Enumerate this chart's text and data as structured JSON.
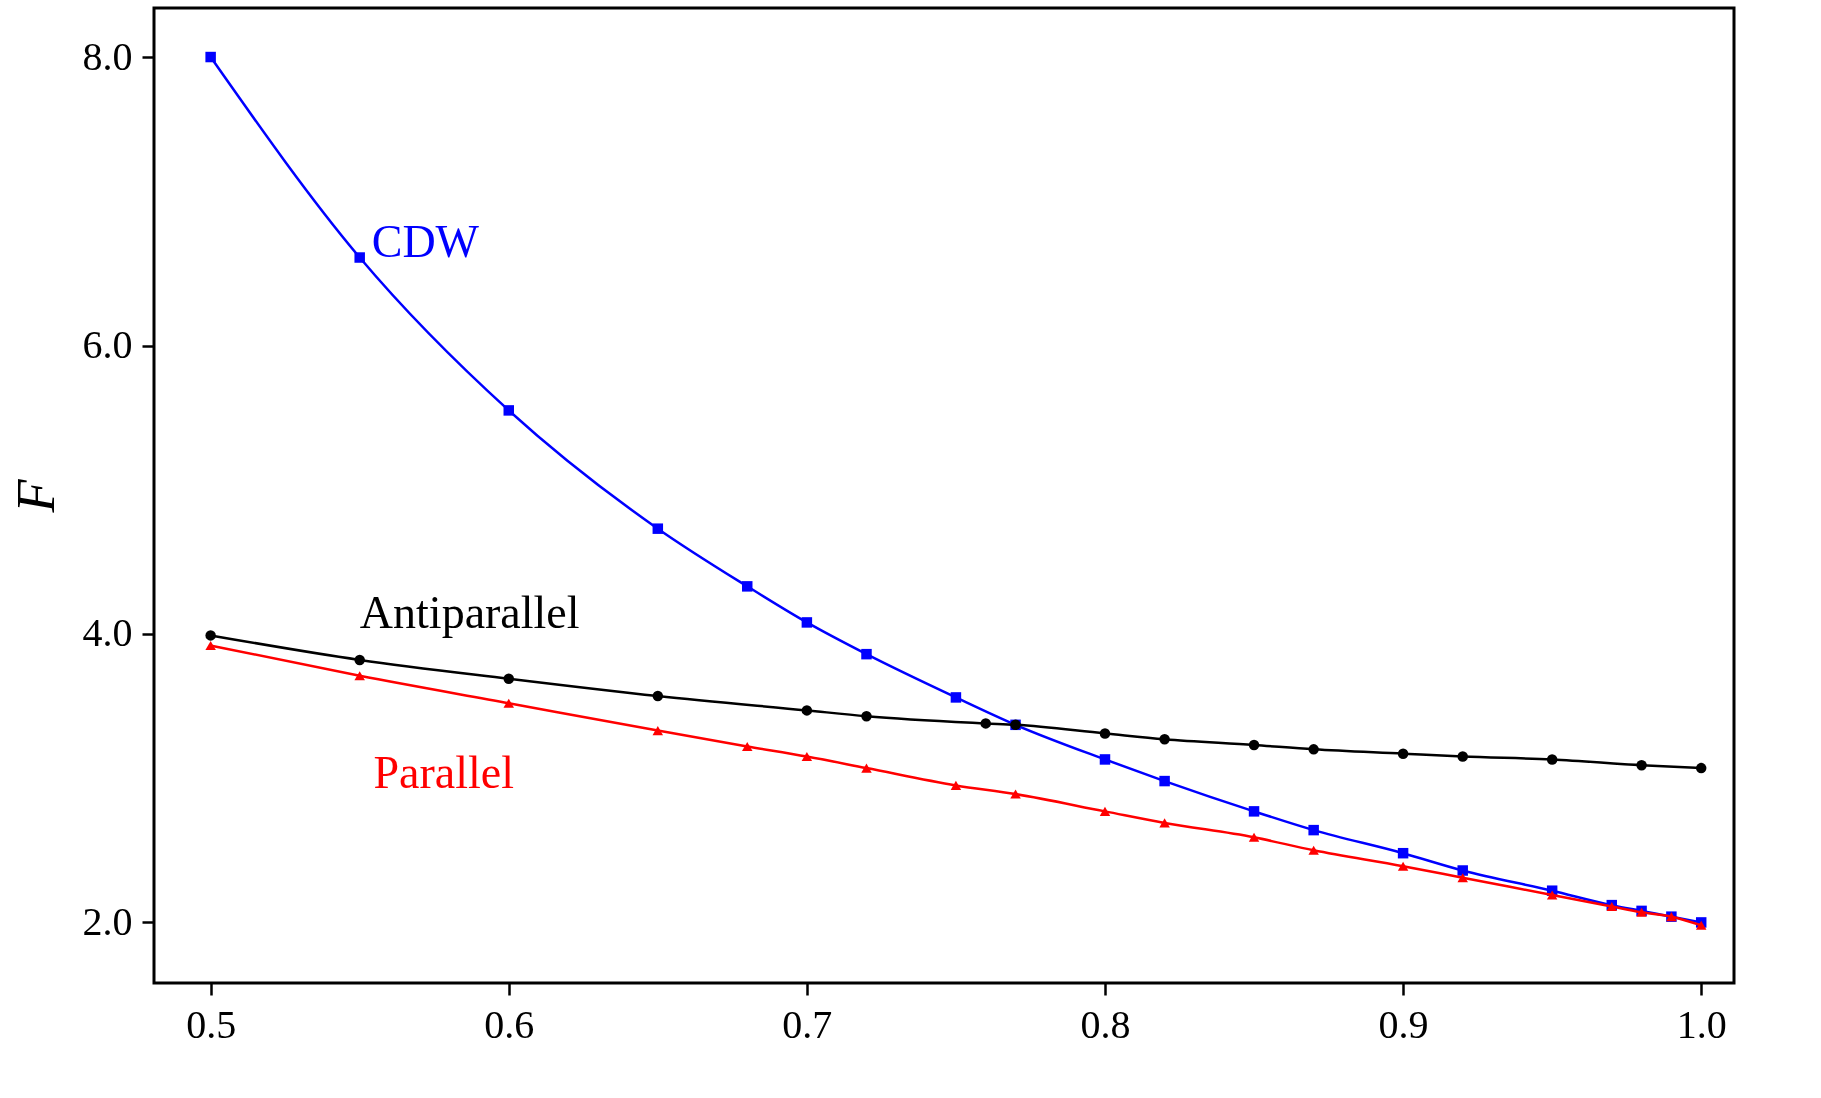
{
  "chart_data": {
    "type": "line",
    "ylabel": "F",
    "xlim": [
      0.481,
      1.011
    ],
    "ylim": [
      1.58,
      8.34
    ],
    "xticks": [
      0.5,
      0.6,
      0.7,
      0.8,
      0.9,
      {
        "value": 1.0,
        "label": "1.0"
      }
    ],
    "yticks": [
      {
        "value": 2,
        "label": "2.0"
      },
      {
        "value": 4,
        "label": "4.0"
      },
      {
        "value": 6,
        "label": "6.0"
      },
      {
        "value": 8,
        "label": "8.0"
      }
    ],
    "grid": false,
    "legend": false,
    "series": [
      {
        "name": "CDW",
        "color": "#0000ff",
        "marker": "square",
        "x": [
          0.5,
          0.55,
          0.6,
          0.65,
          0.68,
          0.7,
          0.72,
          0.75,
          0.77,
          0.8,
          0.82,
          0.85,
          0.87,
          0.9,
          0.92,
          0.95,
          0.97,
          0.98,
          0.99,
          1.0
        ],
        "values": [
          8.0,
          6.61,
          5.55,
          4.73,
          4.33,
          4.08,
          3.86,
          3.56,
          3.37,
          3.13,
          2.98,
          2.77,
          2.64,
          2.48,
          2.36,
          2.22,
          2.12,
          2.08,
          2.04,
          2.0
        ]
      },
      {
        "name": "Antiparallel",
        "color": "#000000",
        "marker": "circle",
        "x": [
          0.5,
          0.55,
          0.6,
          0.65,
          0.7,
          0.72,
          0.76,
          0.77,
          0.8,
          0.82,
          0.85,
          0.87,
          0.9,
          0.92,
          0.95,
          0.98,
          1.0
        ],
        "values": [
          3.99,
          3.82,
          3.69,
          3.57,
          3.47,
          3.43,
          3.38,
          3.37,
          3.31,
          3.27,
          3.23,
          3.2,
          3.17,
          3.15,
          3.13,
          3.09,
          3.07
        ]
      },
      {
        "name": "Parallel",
        "color": "#ff0000",
        "marker": "triangle",
        "x": [
          0.5,
          0.55,
          0.6,
          0.65,
          0.68,
          0.7,
          0.72,
          0.75,
          0.77,
          0.8,
          0.82,
          0.85,
          0.87,
          0.9,
          0.92,
          0.95,
          0.97,
          0.98,
          0.99,
          1.0
        ],
        "values": [
          3.92,
          3.71,
          3.52,
          3.33,
          3.22,
          3.15,
          3.07,
          2.95,
          2.89,
          2.77,
          2.69,
          2.59,
          2.5,
          2.39,
          2.31,
          2.19,
          2.11,
          2.07,
          2.04,
          1.98
        ]
      }
    ]
  }
}
